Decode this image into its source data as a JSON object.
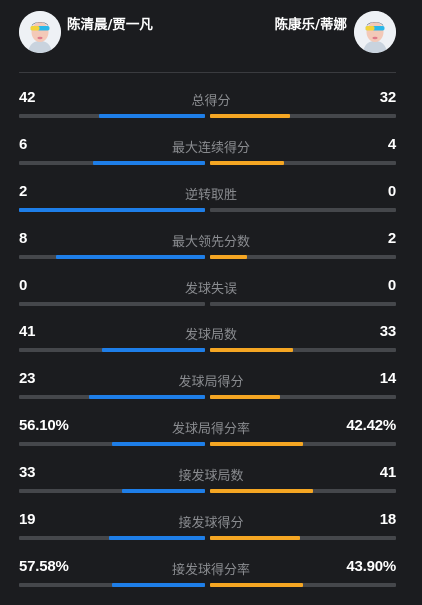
{
  "header": {
    "left_team": "陈清晨/贾一凡",
    "right_team": "陈康乐/蒂娜"
  },
  "colors": {
    "left_bar": "#1e7ee8",
    "right_bar": "#f5a623",
    "track": "#45474b",
    "background": "#1b1c1f"
  },
  "stats": [
    {
      "label": "总得分",
      "left": "42",
      "right": "32",
      "left_share": 0.568,
      "right_share": 0.432
    },
    {
      "label": "最大连续得分",
      "left": "6",
      "right": "4",
      "left_share": 0.6,
      "right_share": 0.4
    },
    {
      "label": "逆转取胜",
      "left": "2",
      "right": "0",
      "left_share": 1.0,
      "right_share": 0.0
    },
    {
      "label": "最大领先分数",
      "left": "8",
      "right": "2",
      "left_share": 0.8,
      "right_share": 0.2
    },
    {
      "label": "发球失误",
      "left": "0",
      "right": "0",
      "left_share": 0.0,
      "right_share": 0.0
    },
    {
      "label": "发球局数",
      "left": "41",
      "right": "33",
      "left_share": 0.554,
      "right_share": 0.446
    },
    {
      "label": "发球局得分",
      "left": "23",
      "right": "14",
      "left_share": 0.622,
      "right_share": 0.378
    },
    {
      "label": "发球局得分率",
      "left": "56.10%",
      "right": "42.42%",
      "left_share": 0.5,
      "right_share": 0.5
    },
    {
      "label": "接发球局数",
      "left": "33",
      "right": "41",
      "left_share": 0.446,
      "right_share": 0.554
    },
    {
      "label": "接发球得分",
      "left": "19",
      "right": "18",
      "left_share": 0.514,
      "right_share": 0.486
    },
    {
      "label": "接发球得分率",
      "left": "57.58%",
      "right": "43.90%",
      "left_share": 0.5,
      "right_share": 0.5
    }
  ]
}
